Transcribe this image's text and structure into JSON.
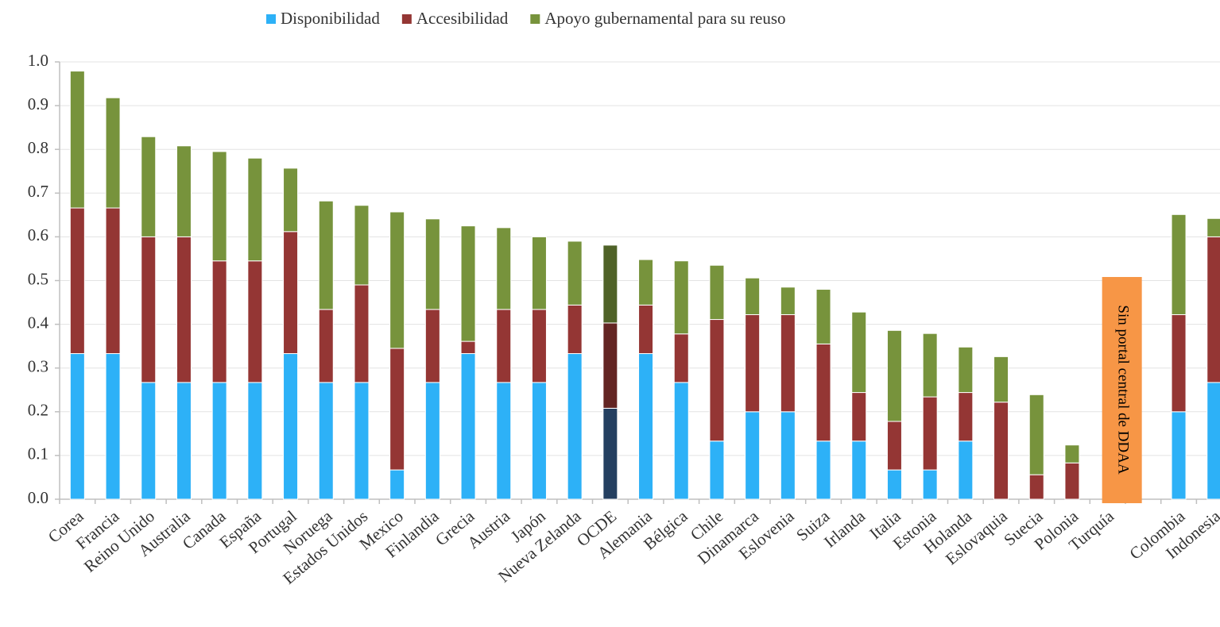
{
  "chart_data": {
    "type": "stacked_bar",
    "categories": [
      "Corea",
      "Francia",
      "Reino Unido",
      "Australia",
      "Canada",
      "España",
      "Portugal",
      "Noruega",
      "Estados Unidos",
      "Mexico",
      "Finlandia",
      "Grecia",
      "Austria",
      "Japón",
      "Nueva Zelanda",
      "OCDE",
      "Alemania",
      "Bélgica",
      "Chile",
      "Dinamarca",
      "Eslovenia",
      "Suiza",
      "Irlanda",
      "Italia",
      "Estonia",
      "Holanda",
      "Eslovaquia",
      "Suecia",
      "Polonia",
      "Turquía",
      null,
      "Colombia",
      "Indonesia"
    ],
    "series": [
      {
        "name": "Disponibilidad",
        "color": "#2db1f7",
        "highlight_color": "#243f60",
        "values": [
          0.333,
          0.333,
          0.267,
          0.267,
          0.267,
          0.267,
          0.333,
          0.267,
          0.267,
          0.067,
          0.267,
          0.333,
          0.267,
          0.267,
          0.333,
          0.208,
          0.333,
          0.267,
          0.133,
          0.2,
          0.2,
          0.133,
          0.133,
          0.067,
          0.067,
          0.133,
          0,
          0,
          0,
          null,
          null,
          0.2,
          0.267
        ]
      },
      {
        "name": "Accesibilidad",
        "color": "#943634",
        "highlight_color": "#632523",
        "values": [
          0.333,
          0.333,
          0.333,
          0.333,
          0.278,
          0.278,
          0.279,
          0.167,
          0.223,
          0.278,
          0.167,
          0.028,
          0.167,
          0.167,
          0.111,
          0.195,
          0.111,
          0.111,
          0.278,
          0.222,
          0.222,
          0.222,
          0.111,
          0.111,
          0.167,
          0.111,
          0.222,
          0.056,
          0.083,
          null,
          null,
          0.222,
          0.333
        ]
      },
      {
        "name": "Apoyo gubernamental para su reuso",
        "color": "#77933c",
        "highlight_color": "#4f6228",
        "values": [
          0.313,
          0.252,
          0.229,
          0.208,
          0.25,
          0.235,
          0.145,
          0.248,
          0.182,
          0.312,
          0.207,
          0.264,
          0.187,
          0.166,
          0.146,
          0.178,
          0.104,
          0.167,
          0.124,
          0.084,
          0.063,
          0.125,
          0.184,
          0.208,
          0.145,
          0.104,
          0.104,
          0.183,
          0.041,
          null,
          null,
          0.229,
          0.042
        ]
      }
    ],
    "highlight_category": "OCDE",
    "annotation": {
      "text": "Sin portal central de DDAA",
      "category": "Turquía",
      "color": "#f79646"
    },
    "ylim": [
      0,
      1
    ],
    "yticks": [
      {
        "value": 0,
        "label": "0.0"
      },
      0.1,
      0.2,
      0.3,
      0.4,
      0.5,
      0.6,
      0.7,
      0.8,
      0.9,
      {
        "value": 1,
        "label": "1.0"
      }
    ],
    "grid": true,
    "legend": "top"
  }
}
